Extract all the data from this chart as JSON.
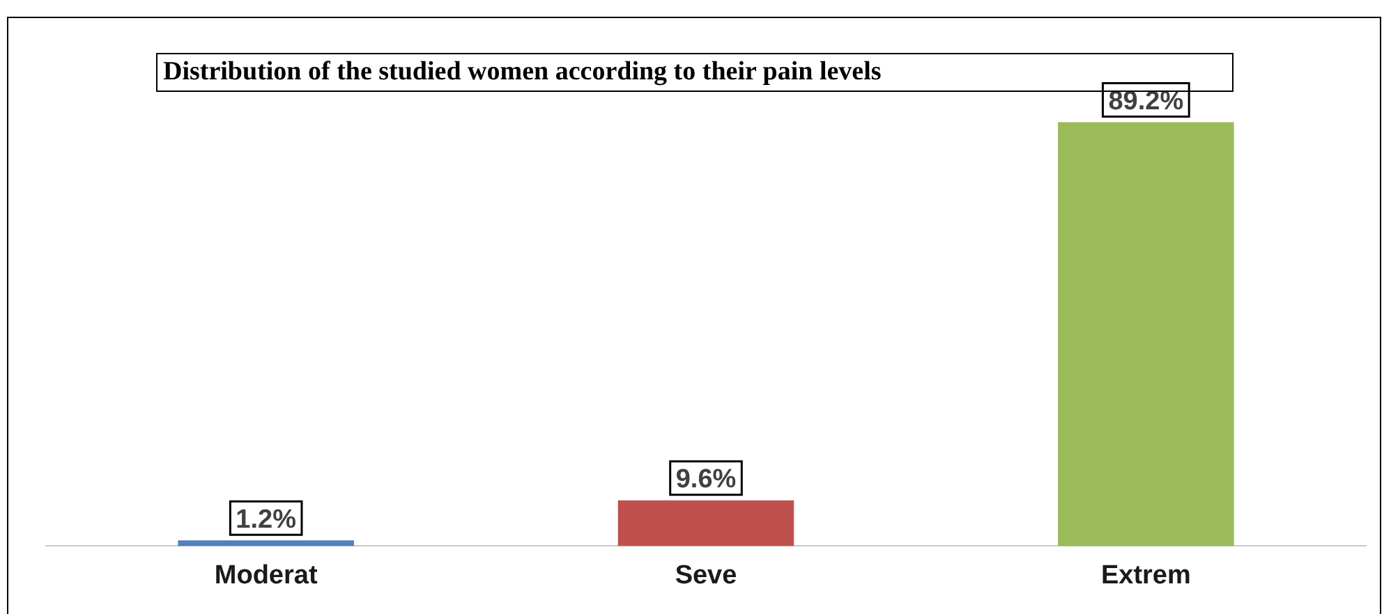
{
  "chart_data": {
    "type": "bar",
    "title": "Distribution of the studied women according to their pain levels",
    "categories": [
      "Moderat",
      "Seve",
      "Extrem"
    ],
    "values": [
      1.2,
      9.6,
      89.2
    ],
    "colors": [
      "#4f81bd",
      "#c0504d",
      "#9bbb59"
    ],
    "value_labels": [
      "1.2%",
      "9.6%",
      "89.2%"
    ],
    "grid": false,
    "legend": false
  }
}
